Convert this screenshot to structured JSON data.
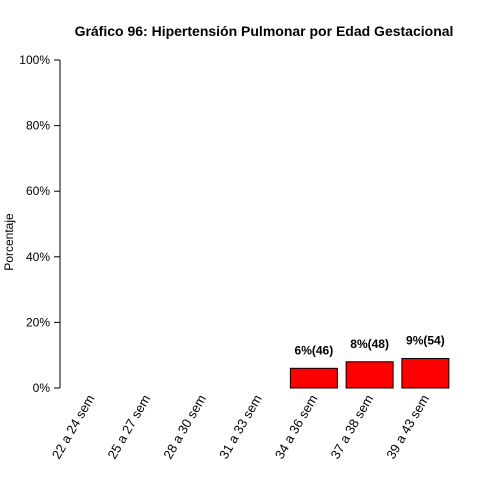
{
  "chart_data": {
    "type": "bar",
    "title": "Gráfico 96: Hipertensión Pulmonar por Edad Gestacional",
    "xlabel": "",
    "ylabel": "Porcentaje",
    "ylim": [
      0,
      100
    ],
    "yticks": [
      "0%",
      "20%",
      "40%",
      "60%",
      "80%",
      "100%"
    ],
    "categories": [
      "22 a 24 sem",
      "25 a 27 sem",
      "28 a 30 sem",
      "31 a 33 sem",
      "34 a 36 sem",
      "37 a 38 sem",
      "39 a 43 sem"
    ],
    "values": [
      0,
      0,
      0,
      0,
      6,
      8,
      9
    ],
    "data_labels": [
      "",
      "",
      "",
      "",
      "6%(46)",
      "8%(48)",
      "9%(54)"
    ],
    "bar_color": "#ff0000",
    "grid": false
  }
}
